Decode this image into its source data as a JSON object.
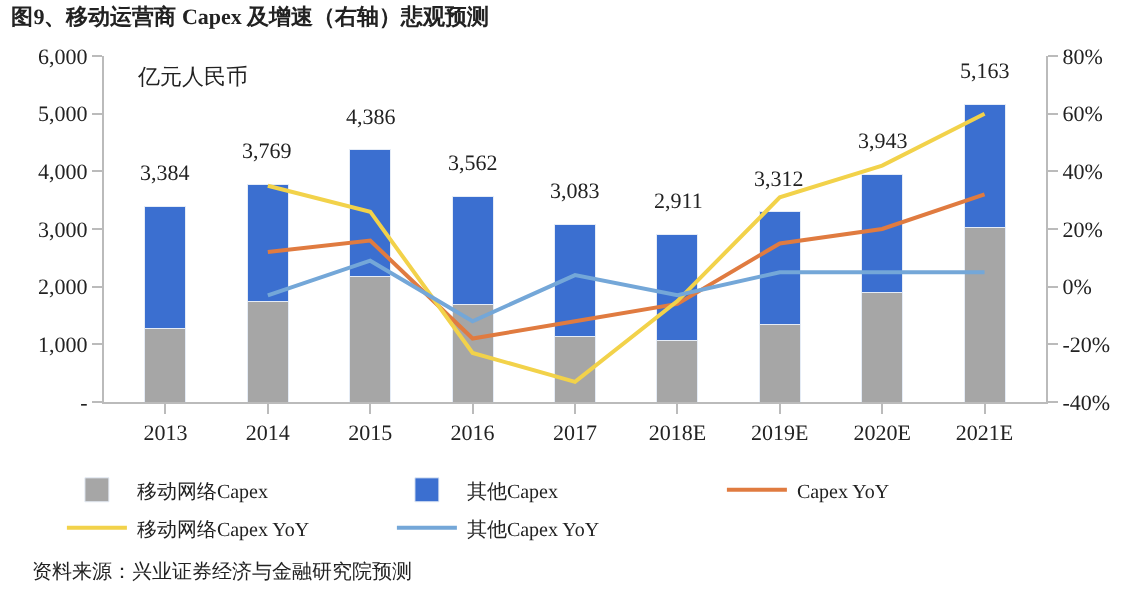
{
  "chart_data": {
    "type": "bar",
    "title": "图9、移动运营商 Capex 及增速（右轴）悲观预测",
    "categories": [
      "2013",
      "2014",
      "2015",
      "2016",
      "2017",
      "2018E",
      "2019E",
      "2020E",
      "2021E"
    ],
    "stacked": true,
    "series": [
      {
        "name": "移动网络Capex",
        "color": "#a6a6a6",
        "values": [
          1280,
          1740,
          2170,
          1690,
          1130,
          1060,
          1340,
          1900,
          3020
        ]
      },
      {
        "name": "其他Capex",
        "color": "#3b6fd0",
        "values": [
          2104,
          2029,
          2216,
          1872,
          1953,
          1851,
          1972,
          2043,
          2143
        ]
      },
      {
        "name": "Capex YoY",
        "type": "line",
        "axis": "y2",
        "color": "#e07b40",
        "values": [
          null,
          12,
          16,
          -18,
          -12,
          -6,
          15,
          20,
          32
        ]
      },
      {
        "name": "移动网络Capex YoY",
        "type": "line",
        "axis": "y2",
        "color": "#f2d24a",
        "values": [
          null,
          35,
          26,
          -23,
          -33,
          -5,
          31,
          42,
          60
        ]
      },
      {
        "name": "其他Capex YoY",
        "type": "line",
        "axis": "y2",
        "color": "#74a7d8",
        "values": [
          null,
          -3,
          9,
          -12,
          4,
          -3,
          5,
          5,
          5
        ]
      }
    ],
    "totals": [
      "3,384",
      "3,769",
      "4,386",
      "3,562",
      "3,083",
      "2,911",
      "3,312",
      "3,943",
      "5,163"
    ],
    "ylim": [
      0,
      6000
    ],
    "yticks": [
      {
        "value": 0,
        "label": "-"
      },
      {
        "value": 1000,
        "label": "1,000"
      },
      {
        "value": 2000,
        "label": "2,000"
      },
      {
        "value": 3000,
        "label": "3,000"
      },
      {
        "value": 4000,
        "label": "4,000"
      },
      {
        "value": 5000,
        "label": "5,000"
      },
      {
        "value": 6000,
        "label": "6,000"
      }
    ],
    "y2lim": [
      -40,
      80
    ],
    "y2ticks": [
      {
        "value": -40,
        "label": "-40%"
      },
      {
        "value": -20,
        "label": "-20%"
      },
      {
        "value": 0,
        "label": "0%"
      },
      {
        "value": 20,
        "label": "20%"
      },
      {
        "value": 40,
        "label": "40%"
      },
      {
        "value": 60,
        "label": "60%"
      },
      {
        "value": 80,
        "label": "80%"
      }
    ],
    "legend": "bottom",
    "marker": "none",
    "line_style": "solid",
    "annotations": [
      "亿元人民币",
      "资料来源：兴业证券经济与金融研究院预测"
    ]
  }
}
